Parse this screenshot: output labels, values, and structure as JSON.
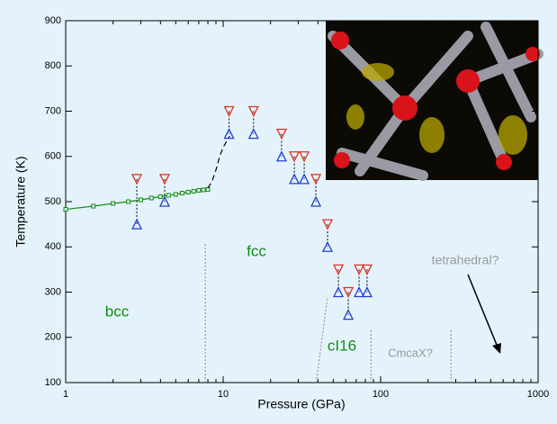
{
  "chart_data": {
    "type": "line",
    "x_label": "Pressure (GPa)",
    "y_label": "Temperature (K)",
    "xlim": [
      1,
      1000
    ],
    "xscale": "log",
    "xticks": [
      1,
      10,
      100,
      1000
    ],
    "ylim": [
      100,
      900
    ],
    "yticks": [
      100,
      200,
      300,
      400,
      500,
      600,
      700,
      800,
      900
    ],
    "series": [
      {
        "style": "line-square",
        "color": "#138a13",
        "x": [
          1,
          1.5,
          2,
          2.5,
          3,
          3.5,
          4,
          4.5,
          5,
          5.5,
          6,
          6.5,
          7,
          7.5,
          8
        ],
        "values": [
          483,
          490,
          496,
          500,
          504,
          508,
          511,
          514,
          516,
          519,
          521,
          523,
          525,
          526,
          527
        ]
      },
      {
        "style": "dashed",
        "color": "#000000",
        "x": [
          8,
          8.5,
          9,
          9.5,
          10,
          11
        ],
        "values": [
          530,
          545,
          570,
          600,
          620,
          645
        ]
      },
      {
        "style": "triangle-down",
        "color": "#e0301e",
        "x": [
          2.83,
          4.25,
          10.9,
          15.6,
          23.5,
          28.3,
          32.7,
          38.8,
          46,
          53.9,
          62.3,
          73,
          82
        ],
        "values": [
          550,
          550,
          700,
          700,
          650,
          600,
          600,
          550,
          450,
          350,
          300,
          350,
          350
        ]
      },
      {
        "style": "triangle-up",
        "color": "#1f3fd0",
        "x": [
          2.83,
          4.25,
          10.9,
          15.6,
          23.5,
          28.3,
          32.7,
          38.8,
          46,
          53.9,
          62.3,
          73,
          82
        ],
        "values": [
          450,
          500,
          650,
          650,
          600,
          550,
          550,
          500,
          400,
          300,
          250,
          300,
          300
        ]
      },
      {
        "style": "dotted",
        "color": "#999999",
        "x": [
          7.7,
          7.7
        ],
        "values": [
          100,
          410
        ]
      },
      {
        "style": "dotted",
        "color": "#999999",
        "x": [
          39,
          46
        ],
        "values": [
          100,
          290
        ]
      },
      {
        "style": "dotted",
        "color": "#999999",
        "x": [
          87,
          87
        ],
        "values": [
          100,
          220
        ]
      },
      {
        "style": "dotted",
        "color": "#999999",
        "x": [
          280,
          280
        ],
        "values": [
          100,
          220
        ]
      }
    ],
    "annotations": [
      {
        "text": "bcc",
        "color": "#138a13"
      },
      {
        "text": "fcc",
        "color": "#138a13"
      },
      {
        "text": "cI16",
        "color": "#138a13"
      },
      {
        "text": "CmcaX?",
        "color": "#999999"
      },
      {
        "text": "tetrahedral?",
        "color": "#999999"
      }
    ]
  }
}
